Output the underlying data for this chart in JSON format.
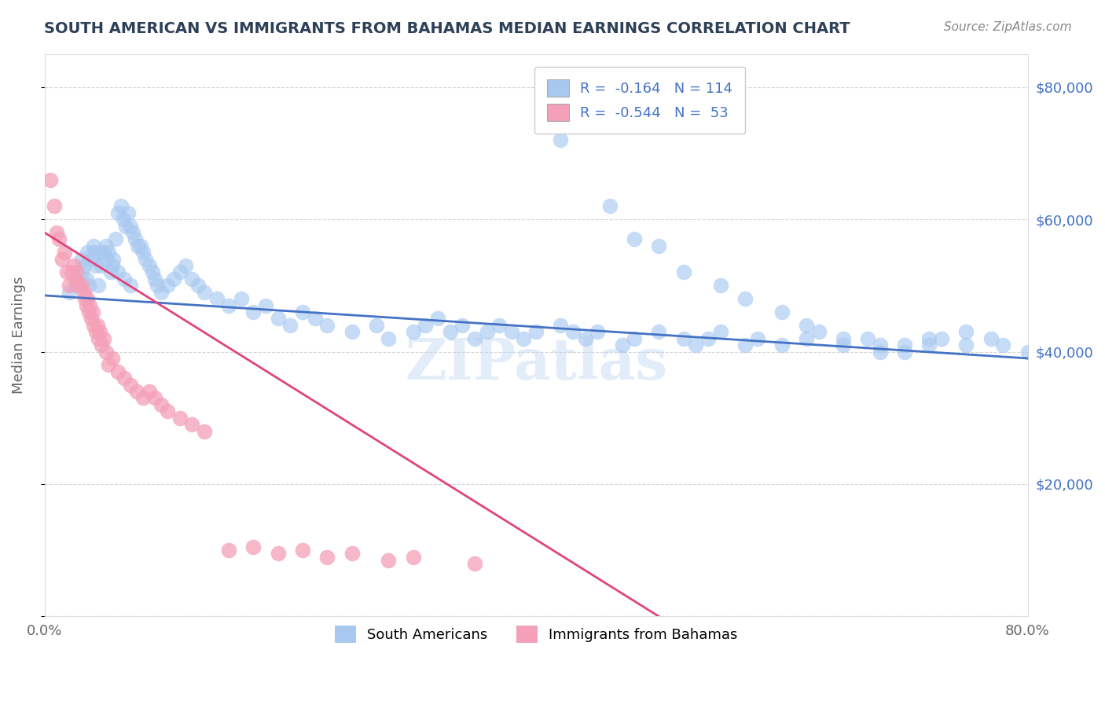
{
  "title": "SOUTH AMERICAN VS IMMIGRANTS FROM BAHAMAS MEDIAN EARNINGS CORRELATION CHART",
  "source": "Source: ZipAtlas.com",
  "ylabel": "Median Earnings",
  "legend_labels": [
    "South Americans",
    "Immigrants from Bahamas"
  ],
  "legend_r": [
    -0.164,
    -0.544
  ],
  "legend_n": [
    114,
    53
  ],
  "blue_color": "#A8C8F0",
  "pink_color": "#F4A0B8",
  "blue_line_color": "#4472C4",
  "pink_line_color": "#E0457A",
  "xmin": 0.0,
  "xmax": 0.8,
  "ymin": 0,
  "ymax": 85000,
  "yticks": [
    0,
    20000,
    40000,
    60000,
    80000
  ],
  "ytick_labels": [
    "",
    "$20,000",
    "$40,000",
    "$60,000",
    "$80,000"
  ],
  "xticks": [
    0.0,
    0.8
  ],
  "xtick_labels": [
    "0.0%",
    "80.0%"
  ],
  "background_color": "#FFFFFF",
  "grid_color": "#CCCCCC",
  "watermark": "ZIPatlas",
  "blue_scatter_x": [
    0.02,
    0.025,
    0.03,
    0.032,
    0.034,
    0.036,
    0.038,
    0.04,
    0.042,
    0.044,
    0.046,
    0.048,
    0.05,
    0.052,
    0.054,
    0.056,
    0.058,
    0.06,
    0.062,
    0.064,
    0.066,
    0.068,
    0.07,
    0.072,
    0.074,
    0.076,
    0.078,
    0.08,
    0.082,
    0.085,
    0.088,
    0.09,
    0.092,
    0.095,
    0.1,
    0.105,
    0.11,
    0.115,
    0.12,
    0.125,
    0.13,
    0.14,
    0.15,
    0.16,
    0.17,
    0.18,
    0.19,
    0.2,
    0.21,
    0.22,
    0.23,
    0.25,
    0.27,
    0.28,
    0.3,
    0.31,
    0.32,
    0.33,
    0.34,
    0.35,
    0.36,
    0.37,
    0.38,
    0.39,
    0.4,
    0.42,
    0.43,
    0.44,
    0.45,
    0.47,
    0.48,
    0.5,
    0.52,
    0.53,
    0.54,
    0.55,
    0.57,
    0.58,
    0.6,
    0.62,
    0.63,
    0.65,
    0.67,
    0.68,
    0.7,
    0.72,
    0.73,
    0.75,
    0.77,
    0.78,
    0.8,
    0.42,
    0.46,
    0.48,
    0.5,
    0.52,
    0.55,
    0.57,
    0.6,
    0.62,
    0.65,
    0.68,
    0.7,
    0.72,
    0.75,
    0.03,
    0.035,
    0.04,
    0.045,
    0.05,
    0.055,
    0.06,
    0.065,
    0.07
  ],
  "blue_scatter_y": [
    49000,
    50000,
    52000,
    53000,
    51000,
    50000,
    54000,
    55000,
    53000,
    50000,
    53000,
    55000,
    56000,
    55000,
    52000,
    54000,
    57000,
    61000,
    62000,
    60000,
    59000,
    61000,
    59000,
    58000,
    57000,
    56000,
    56000,
    55000,
    54000,
    53000,
    52000,
    51000,
    50000,
    49000,
    50000,
    51000,
    52000,
    53000,
    51000,
    50000,
    49000,
    48000,
    47000,
    48000,
    46000,
    47000,
    45000,
    44000,
    46000,
    45000,
    44000,
    43000,
    44000,
    42000,
    43000,
    44000,
    45000,
    43000,
    44000,
    42000,
    43000,
    44000,
    43000,
    42000,
    43000,
    44000,
    43000,
    42000,
    43000,
    41000,
    42000,
    43000,
    42000,
    41000,
    42000,
    43000,
    41000,
    42000,
    41000,
    42000,
    43000,
    41000,
    42000,
    41000,
    40000,
    41000,
    42000,
    41000,
    42000,
    41000,
    40000,
    72000,
    62000,
    57000,
    56000,
    52000,
    50000,
    48000,
    46000,
    44000,
    42000,
    40000,
    41000,
    42000,
    43000,
    54000,
    55000,
    56000,
    55000,
    54000,
    53000,
    52000,
    51000,
    50000
  ],
  "pink_scatter_x": [
    0.005,
    0.008,
    0.01,
    0.012,
    0.014,
    0.016,
    0.018,
    0.02,
    0.022,
    0.024,
    0.025,
    0.026,
    0.028,
    0.03,
    0.032,
    0.033,
    0.034,
    0.035,
    0.036,
    0.037,
    0.038,
    0.039,
    0.04,
    0.042,
    0.043,
    0.044,
    0.045,
    0.046,
    0.048,
    0.05,
    0.052,
    0.055,
    0.06,
    0.065,
    0.07,
    0.075,
    0.08,
    0.085,
    0.09,
    0.095,
    0.1,
    0.11,
    0.12,
    0.13,
    0.15,
    0.17,
    0.19,
    0.21,
    0.23,
    0.25,
    0.28,
    0.3,
    0.35
  ],
  "pink_scatter_y": [
    66000,
    62000,
    58000,
    57000,
    54000,
    55000,
    52000,
    50000,
    52000,
    53000,
    51000,
    52000,
    50000,
    50000,
    49000,
    48000,
    47000,
    48000,
    46000,
    47000,
    45000,
    46000,
    44000,
    43000,
    44000,
    42000,
    43000,
    41000,
    42000,
    40000,
    38000,
    39000,
    37000,
    36000,
    35000,
    34000,
    33000,
    34000,
    33000,
    32000,
    31000,
    30000,
    29000,
    28000,
    10000,
    10500,
    9500,
    10000,
    9000,
    9500,
    8500,
    9000,
    8000
  ],
  "blue_trend_x": [
    0.0,
    0.8
  ],
  "blue_trend_y": [
    48500,
    39000
  ],
  "pink_trend_x": [
    0.0,
    0.5
  ],
  "pink_trend_y": [
    58000,
    0
  ],
  "title_color": "#2E4057",
  "source_color": "#888888",
  "axis_label_color": "#666666",
  "tick_color": "#666666",
  "right_ytick_color": "#4472C4",
  "legend_text_color": "#4472C4"
}
